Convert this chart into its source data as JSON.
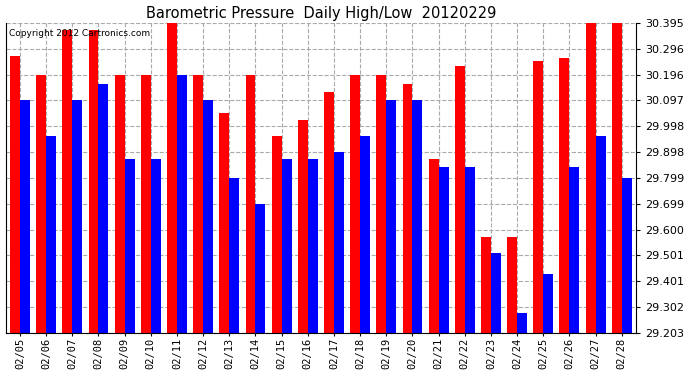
{
  "title": "Barometric Pressure  Daily High/Low  20120229",
  "copyright": "Copyright 2012 Cartronics.com",
  "dates": [
    "02/05",
    "02/06",
    "02/07",
    "02/08",
    "02/09",
    "02/10",
    "02/11",
    "02/12",
    "02/13",
    "02/14",
    "02/15",
    "02/16",
    "02/17",
    "02/18",
    "02/19",
    "02/20",
    "02/21",
    "02/22",
    "02/23",
    "02/24",
    "02/25",
    "02/26",
    "02/27",
    "02/28"
  ],
  "highs": [
    30.27,
    30.196,
    30.37,
    30.37,
    30.196,
    30.196,
    30.395,
    30.196,
    30.05,
    30.196,
    29.96,
    30.02,
    30.13,
    30.196,
    30.196,
    30.16,
    29.87,
    30.23,
    29.57,
    29.57,
    30.25,
    30.26,
    30.395,
    30.395
  ],
  "lows": [
    30.097,
    29.96,
    30.097,
    30.16,
    29.87,
    29.87,
    30.196,
    30.097,
    29.799,
    29.699,
    29.87,
    29.87,
    29.898,
    29.96,
    30.097,
    30.097,
    29.84,
    29.84,
    29.51,
    29.28,
    29.43,
    29.84,
    29.96,
    29.799
  ],
  "high_color": "#ff0000",
  "low_color": "#0000ff",
  "ylim_min": 29.203,
  "ylim_max": 30.395,
  "yticks": [
    29.203,
    29.302,
    29.401,
    29.501,
    29.6,
    29.699,
    29.799,
    29.898,
    29.998,
    30.097,
    30.196,
    30.296,
    30.395
  ],
  "background_color": "#ffffff",
  "grid_color": "#aaaaaa",
  "bar_width": 0.38
}
